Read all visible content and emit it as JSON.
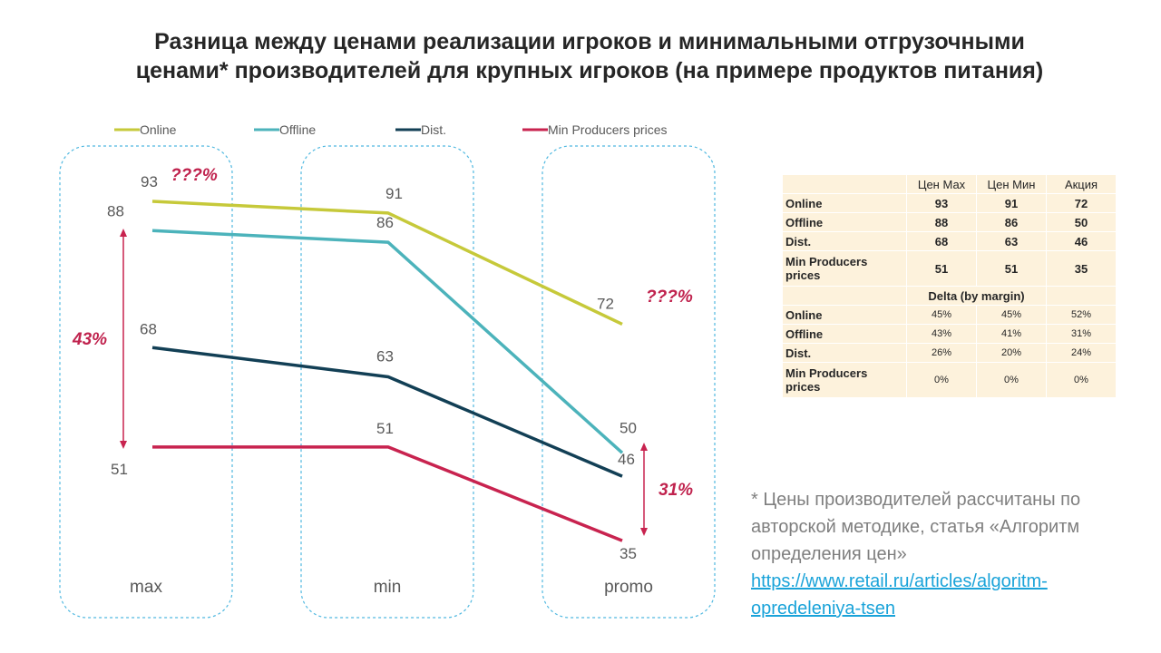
{
  "title": "Разница между ценами реализации игроков и минимальными отгрузочными ценами* производителей для крупных игроков (на примере продуктов питания)",
  "chart_data": {
    "type": "line",
    "categories": [
      "max",
      "min",
      "promo"
    ],
    "series": [
      {
        "name": "Online",
        "values": [
          93,
          91,
          72
        ],
        "color": "#c6c93a"
      },
      {
        "name": "Offline",
        "values": [
          88,
          86,
          50
        ],
        "color": "#4cb3bb"
      },
      {
        "name": "Dist.",
        "values": [
          68,
          63,
          46
        ],
        "color": "#123f55"
      },
      {
        "name": "Min Producers prices",
        "values": [
          51,
          51,
          35
        ],
        "color": "#c8234f"
      }
    ],
    "annotations": {
      "left_question": "???%",
      "right_question": "???%",
      "left_delta": "43%",
      "right_delta": "31%"
    },
    "grid": false,
    "legend": "top"
  },
  "table": {
    "headers": [
      "",
      "Цен Мах",
      "Цен Мин",
      "Акция"
    ],
    "prices": [
      {
        "name": "Online",
        "values": [
          "93",
          "91",
          "72"
        ]
      },
      {
        "name": "Offline",
        "values": [
          "88",
          "86",
          "50"
        ]
      },
      {
        "name": "Dist.",
        "values": [
          "68",
          "63",
          "46"
        ]
      },
      {
        "name": "Min Producers prices",
        "values": [
          "51",
          "51",
          "35"
        ]
      }
    ],
    "delta_title": "Delta (by margin)",
    "delta": [
      {
        "name": "Online",
        "values": [
          "45%",
          "45%",
          "52%"
        ]
      },
      {
        "name": "Offline",
        "values": [
          "43%",
          "41%",
          "31%"
        ]
      },
      {
        "name": "Dist.",
        "values": [
          "26%",
          "20%",
          "24%"
        ]
      },
      {
        "name": "Min Producers prices",
        "values": [
          "0%",
          "0%",
          "0%"
        ]
      }
    ]
  },
  "note": {
    "text": "* Цены производителей рассчитаны по авторской методике, статья «Алгоритм определения цен»",
    "link": "https://www.retail.ru/articles/algoritm-opredeleniya-tsen"
  }
}
